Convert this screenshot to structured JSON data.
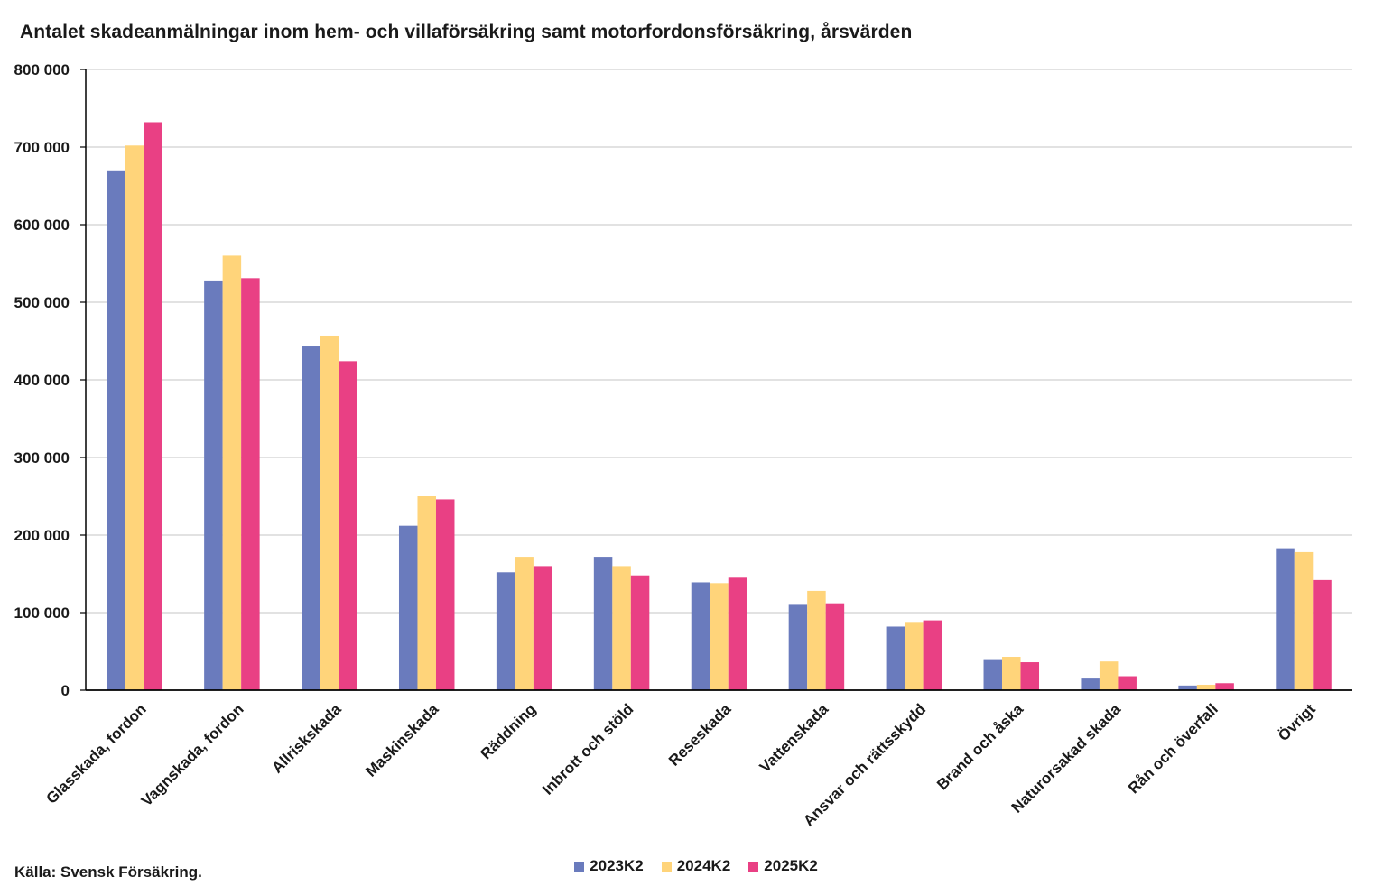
{
  "chart_data": {
    "type": "bar",
    "title": "Antalet skadeanmälningar inom hem- och villaförsäkring samt motorfordonsförsäkring, årsvärden",
    "source": "Källa: Svensk Försäkring.",
    "xlabel": "",
    "ylabel": "",
    "ylim": [
      0,
      800000
    ],
    "yticks": [
      0,
      100000,
      200000,
      300000,
      400000,
      500000,
      600000,
      700000,
      800000
    ],
    "ytick_labels": [
      "0",
      "100 000",
      "200 000",
      "300 000",
      "400 000",
      "500 000",
      "600 000",
      "700 000",
      "800 000"
    ],
    "grid": true,
    "legend_position": "bottom-center",
    "categories": [
      "Glasskada, fordon",
      "Vagnskada, fordon",
      "Allriskskada",
      "Maskinskada",
      "Räddning",
      "Inbrott och stöld",
      "Reseskada",
      "Vattenskada",
      "Ansvar och rättsskydd",
      "Brand och åska",
      "Naturorsakad skada",
      "Rån och överfall",
      "Övrigt"
    ],
    "series": [
      {
        "name": "2023K2",
        "color": "#6a7bbd",
        "values": [
          670000,
          528000,
          443000,
          212000,
          152000,
          172000,
          139000,
          110000,
          82000,
          40000,
          15000,
          6000,
          183000
        ]
      },
      {
        "name": "2024K2",
        "color": "#ffd47a",
        "values": [
          702000,
          560000,
          457000,
          250000,
          172000,
          160000,
          138000,
          128000,
          88000,
          43000,
          37000,
          7000,
          178000
        ]
      },
      {
        "name": "2025K2",
        "color": "#e94084",
        "values": [
          732000,
          531000,
          424000,
          246000,
          160000,
          148000,
          145000,
          112000,
          90000,
          36000,
          18000,
          9000,
          142000
        ]
      }
    ]
  }
}
